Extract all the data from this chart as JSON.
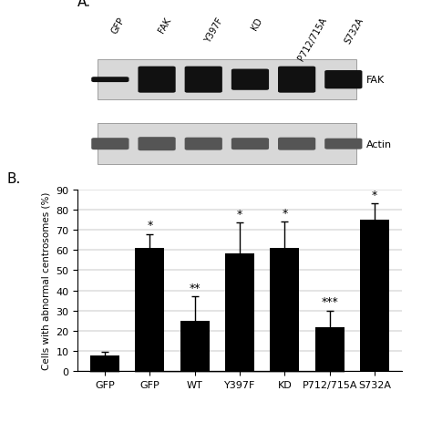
{
  "title_A": "A.",
  "title_B": "B.",
  "bar_labels": [
    "GFP",
    "GFP",
    "WT",
    "Y397F",
    "KD",
    "P712/715A",
    "S732A"
  ],
  "bar_values": [
    8,
    61,
    25,
    58.5,
    61,
    22,
    75
  ],
  "bar_errors": [
    1.5,
    7,
    12,
    15,
    13,
    8,
    8
  ],
  "bar_color": "#000000",
  "significance": [
    "",
    "*",
    "**",
    "*",
    "*",
    "***",
    "*"
  ],
  "ylabel": "Cells with abnormal centrosomes (%)",
  "ylim": [
    0,
    90
  ],
  "yticks": [
    0,
    10,
    20,
    30,
    40,
    50,
    60,
    70,
    80,
    90
  ],
  "background_color": "#ffffff",
  "western_blot_labels": [
    "FAK",
    "Actin"
  ],
  "western_col_labels": [
    "GFP",
    "FAK",
    "Y397F",
    "KD",
    "P712/715A",
    "S732A"
  ],
  "fak_intensities": [
    0.1,
    0.9,
    0.9,
    0.7,
    0.9,
    0.6
  ],
  "actin_intensities": [
    0.5,
    0.6,
    0.55,
    0.5,
    0.55,
    0.45
  ]
}
